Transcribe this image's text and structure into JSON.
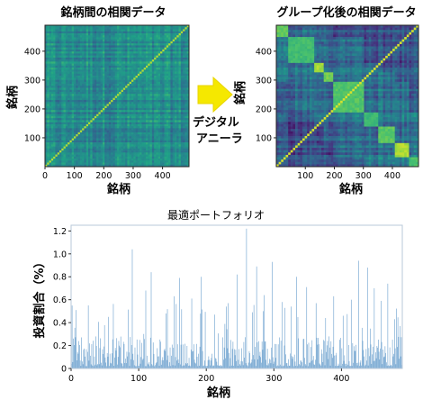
{
  "chart_data": [
    {
      "type": "heatmap",
      "title": "銘柄間の相関データ",
      "xlabel": "銘柄",
      "ylabel": "銘柄",
      "xticks": [
        0,
        100,
        200,
        300,
        400
      ],
      "yticks": [
        100,
        200,
        300,
        400
      ],
      "xlim": [
        0,
        490
      ],
      "ylim": [
        0,
        490
      ],
      "n_assets": 490,
      "structure": "unsorted",
      "colormap": "viridis"
    },
    {
      "type": "heatmap",
      "title": "グループ化後の相関データ",
      "xlabel": "銘柄",
      "ylabel": "銘柄",
      "xticks": [
        100,
        200,
        300,
        400
      ],
      "yticks": [
        100,
        200,
        300,
        400
      ],
      "xlim": [
        0,
        490
      ],
      "ylim": [
        0,
        490
      ],
      "n_assets": 490,
      "structure": "clustered",
      "colormap": "viridis"
    },
    {
      "type": "bar",
      "title": "最適ポートフォリオ",
      "xlabel": "銘柄",
      "ylabel": "投資割合（%）",
      "xlim": [
        0,
        490
      ],
      "ylim": [
        0,
        1.25
      ],
      "xticks": [
        0,
        100,
        200,
        300,
        400
      ],
      "yticks": [
        "0",
        "0.2",
        "0.4",
        "0.6",
        "0.8",
        "1.0",
        "1.2"
      ],
      "bar_color": "#4f8ec4",
      "n_bars": 490,
      "notable_values": [
        {
          "x": 7,
          "y": 0.51
        },
        {
          "x": 25,
          "y": 0.55
        },
        {
          "x": 55,
          "y": 0.45
        },
        {
          "x": 90,
          "y": 1.04
        },
        {
          "x": 110,
          "y": 0.68
        },
        {
          "x": 118,
          "y": 0.84
        },
        {
          "x": 140,
          "y": 0.48
        },
        {
          "x": 152,
          "y": 0.63
        },
        {
          "x": 160,
          "y": 0.79
        },
        {
          "x": 178,
          "y": 0.61
        },
        {
          "x": 192,
          "y": 0.8
        },
        {
          "x": 212,
          "y": 0.47
        },
        {
          "x": 232,
          "y": 0.57
        },
        {
          "x": 245,
          "y": 0.82
        },
        {
          "x": 259,
          "y": 1.22
        },
        {
          "x": 274,
          "y": 0.89
        },
        {
          "x": 285,
          "y": 0.64
        },
        {
          "x": 297,
          "y": 0.93
        },
        {
          "x": 312,
          "y": 0.58
        },
        {
          "x": 325,
          "y": 0.54
        },
        {
          "x": 333,
          "y": 0.8
        },
        {
          "x": 348,
          "y": 0.71
        },
        {
          "x": 362,
          "y": 0.57
        },
        {
          "x": 376,
          "y": 0.44
        },
        {
          "x": 388,
          "y": 0.63
        },
        {
          "x": 402,
          "y": 0.46
        },
        {
          "x": 414,
          "y": 0.6
        },
        {
          "x": 425,
          "y": 0.94
        },
        {
          "x": 438,
          "y": 0.88
        },
        {
          "x": 448,
          "y": 0.7
        },
        {
          "x": 458,
          "y": 0.59
        },
        {
          "x": 468,
          "y": 0.74
        },
        {
          "x": 478,
          "y": 0.43
        },
        {
          "x": 486,
          "y": 0.37
        }
      ]
    }
  ],
  "arrow": {
    "label_line1": "デジタル",
    "label_line2": "アニーラ",
    "color": "#f5e800"
  }
}
